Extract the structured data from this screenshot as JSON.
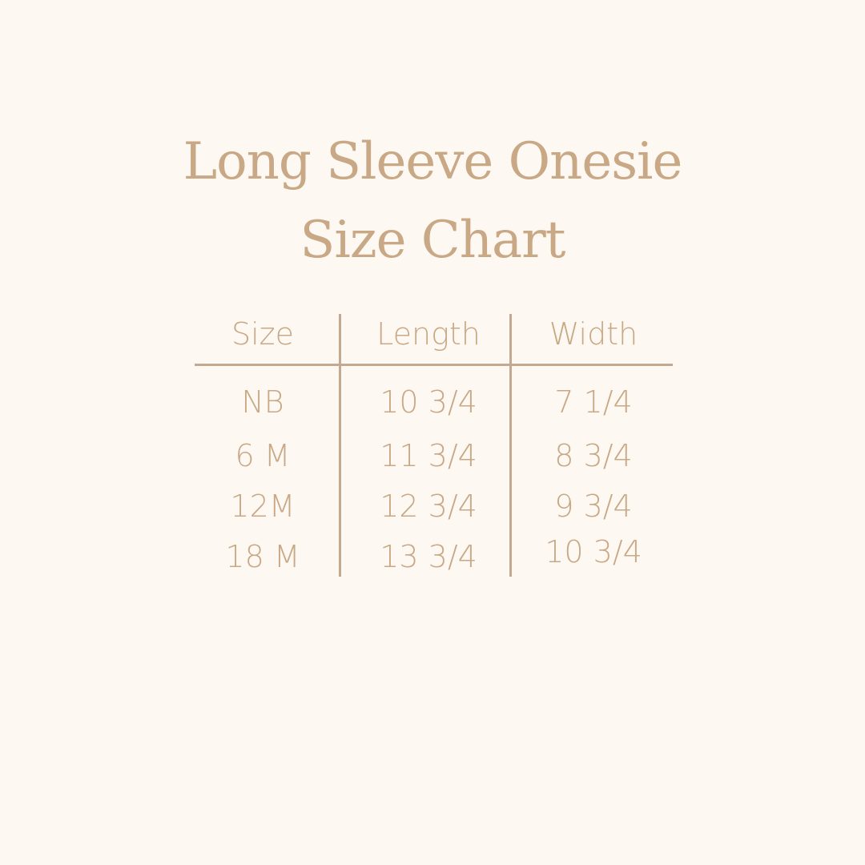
{
  "title_line1": "Long Sleeve Onesie",
  "title_line2": "Size Chart",
  "colors": {
    "background": "#fdf9f2",
    "text": "#c9a886",
    "lines": "#c4a890"
  },
  "table": {
    "headers": [
      "Size",
      "Length",
      "Width"
    ],
    "rows": [
      [
        "NB",
        "10 3/4",
        "7 1/4"
      ],
      [
        "6 M",
        "11 3/4",
        "8 3/4"
      ],
      [
        "12M",
        "12 3/4",
        "9 3/4"
      ],
      [
        "18 M",
        "13 3/4",
        "10 3/4"
      ]
    ]
  }
}
